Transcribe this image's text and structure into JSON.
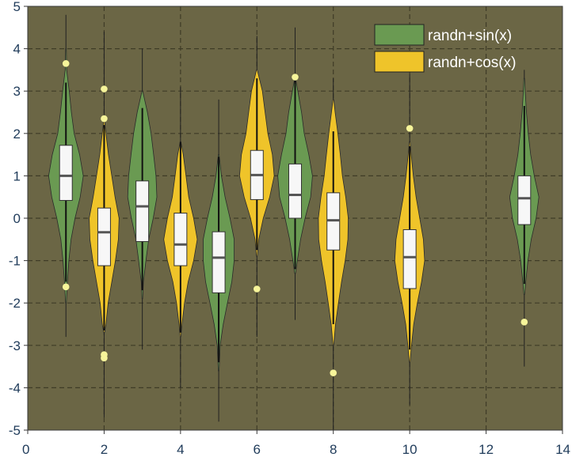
{
  "chart_data": {
    "type": "violin",
    "xlim": [
      0,
      14
    ],
    "ylim": [
      -5,
      5
    ],
    "x_ticks": [
      "0",
      "2",
      "4",
      "6",
      "8",
      "10",
      "12",
      "14"
    ],
    "y_ticks": [
      "5",
      "4",
      "3",
      "2",
      "1",
      "0",
      "-1",
      "-2",
      "-3",
      "-4",
      "-5"
    ],
    "grid": true,
    "legend_position": "top-right",
    "colors": {
      "background": "#6b6645",
      "grid": "#3f3c27",
      "sin": "#6a9a52",
      "cos": "#efc42a",
      "box": "#f7f7f7",
      "median": "#555555",
      "outlier": "#f7f59a",
      "tick_text": "#1f3b5a"
    },
    "series": [
      {
        "name": "randn+sin(x)",
        "color": "#6a9a52",
        "violins": [
          {
            "x": 1,
            "whisker": [
              -2.8,
              4.8
            ],
            "kde": [
              [
                -2.0,
                0.02
              ],
              [
                -1.5,
                0.08
              ],
              [
                -1.0,
                0.16
              ],
              [
                -0.5,
                0.28
              ],
              [
                0,
                0.5
              ],
              [
                0.5,
                0.78
              ],
              [
                1.0,
                0.95
              ],
              [
                1.5,
                0.75
              ],
              [
                2.0,
                0.45
              ],
              [
                2.5,
                0.3
              ],
              [
                3.0,
                0.18
              ],
              [
                3.5,
                0.04
              ],
              [
                4.0,
                0.02
              ]
            ],
            "q1": 0.42,
            "median": 1.0,
            "q3": 1.72,
            "inner": [
              -1.5,
              3.2
            ],
            "outliers": [
              3.65,
              -1.62
            ]
          },
          {
            "x": 3,
            "whisker": [
              -3.1,
              4.0
            ],
            "kde": [
              [
                -1.9,
                0.02
              ],
              [
                -1.5,
                0.06
              ],
              [
                -1.0,
                0.2
              ],
              [
                -0.5,
                0.35
              ],
              [
                0,
                0.6
              ],
              [
                0.5,
                0.8
              ],
              [
                1.0,
                0.75
              ],
              [
                1.5,
                0.62
              ],
              [
                2.0,
                0.48
              ],
              [
                2.5,
                0.28
              ],
              [
                3.0,
                0.02
              ]
            ],
            "q1": -0.55,
            "median": 0.28,
            "q3": 0.88,
            "inner": [
              -1.7,
              2.6
            ],
            "outliers": []
          },
          {
            "x": 5,
            "whisker": [
              -4.8,
              2.8
            ],
            "kde": [
              [
                -3.6,
                0.02
              ],
              [
                -3.0,
                0.08
              ],
              [
                -2.5,
                0.25
              ],
              [
                -2.0,
                0.48
              ],
              [
                -1.5,
                0.72
              ],
              [
                -1.0,
                0.85
              ],
              [
                -0.5,
                0.85
              ],
              [
                0,
                0.62
              ],
              [
                0.5,
                0.35
              ],
              [
                1.0,
                0.15
              ],
              [
                1.5,
                0.02
              ]
            ],
            "q1": -1.76,
            "median": -0.93,
            "q3": -0.32,
            "inner": [
              -3.4,
              1.45
            ],
            "outliers": []
          },
          {
            "x": 7,
            "whisker": [
              -2.4,
              4.5
            ],
            "kde": [
              [
                -1.3,
                0.02
              ],
              [
                -1.0,
                0.12
              ],
              [
                -0.5,
                0.3
              ],
              [
                0,
                0.55
              ],
              [
                0.5,
                0.85
              ],
              [
                1.0,
                0.95
              ],
              [
                1.5,
                0.75
              ],
              [
                2.0,
                0.5
              ],
              [
                2.5,
                0.35
              ],
              [
                3.0,
                0.15
              ],
              [
                3.3,
                0.02
              ]
            ],
            "q1": 0.0,
            "median": 0.55,
            "q3": 1.28,
            "inner": [
              -1.2,
              3.25
            ],
            "outliers": [
              3.33
            ]
          },
          {
            "x": 13,
            "whisker": [
              -3.5,
              3.5
            ],
            "kde": [
              [
                -1.8,
                0.02
              ],
              [
                -1.5,
                0.08
              ],
              [
                -1.0,
                0.2
              ],
              [
                -0.5,
                0.38
              ],
              [
                0,
                0.65
              ],
              [
                0.5,
                0.8
              ],
              [
                1.0,
                0.55
              ],
              [
                1.5,
                0.35
              ],
              [
                2.0,
                0.22
              ],
              [
                2.5,
                0.12
              ],
              [
                3.0,
                0.05
              ],
              [
                3.3,
                0.02
              ]
            ],
            "q1": -0.15,
            "median": 0.47,
            "q3": 1.0,
            "inner": [
              -1.55,
              2.65
            ],
            "outliers": [
              -2.45
            ]
          }
        ]
      },
      {
        "name": "randn+cos(x)",
        "color": "#efc42a",
        "violins": [
          {
            "x": 2,
            "whisker": [
              -4.7,
              4.4
            ],
            "kde": [
              [
                -2.7,
                0.02
              ],
              [
                -2.5,
                0.1
              ],
              [
                -2.0,
                0.22
              ],
              [
                -1.5,
                0.42
              ],
              [
                -1.0,
                0.62
              ],
              [
                -0.5,
                0.78
              ],
              [
                0,
                0.82
              ],
              [
                0.5,
                0.6
              ],
              [
                1.0,
                0.42
              ],
              [
                1.5,
                0.24
              ],
              [
                2.0,
                0.1
              ],
              [
                2.3,
                0.02
              ]
            ],
            "q1": -1.12,
            "median": -0.33,
            "q3": 0.24,
            "inner": [
              -2.65,
              2.2
            ],
            "outliers": [
              3.05,
              2.35,
              -3.22,
              -3.3
            ]
          },
          {
            "x": 4,
            "whisker": [
              -4.0,
              3.1
            ],
            "kde": [
              [
                -2.8,
                0.02
              ],
              [
                -2.5,
                0.08
              ],
              [
                -2.0,
                0.22
              ],
              [
                -1.5,
                0.42
              ],
              [
                -1.0,
                0.72
              ],
              [
                -0.5,
                0.92
              ],
              [
                0,
                0.72
              ],
              [
                0.5,
                0.45
              ],
              [
                1.0,
                0.3
              ],
              [
                1.5,
                0.15
              ],
              [
                1.8,
                0.02
              ]
            ],
            "q1": -1.12,
            "median": -0.62,
            "q3": 0.12,
            "inner": [
              -2.7,
              1.8
            ],
            "outliers": []
          },
          {
            "x": 6,
            "whisker": [
              -2.8,
              4.3
            ],
            "kde": [
              [
                -0.9,
                0.02
              ],
              [
                -0.5,
                0.1
              ],
              [
                0,
                0.35
              ],
              [
                0.5,
                0.7
              ],
              [
                1.0,
                0.95
              ],
              [
                1.5,
                0.85
              ],
              [
                2.0,
                0.6
              ],
              [
                2.5,
                0.45
              ],
              [
                3.0,
                0.3
              ],
              [
                3.5,
                0.02
              ]
            ],
            "q1": 0.44,
            "median": 1.02,
            "q3": 1.6,
            "inner": [
              -0.75,
              3.3
            ],
            "outliers": [
              -1.67
            ]
          },
          {
            "x": 8,
            "whisker": [
              -5.0,
              3.3
            ],
            "kde": [
              [
                -3.0,
                0.02
              ],
              [
                -2.5,
                0.12
              ],
              [
                -2.0,
                0.28
              ],
              [
                -1.5,
                0.45
              ],
              [
                -1.0,
                0.65
              ],
              [
                -0.5,
                0.8
              ],
              [
                0,
                0.82
              ],
              [
                0.5,
                0.68
              ],
              [
                1.0,
                0.5
              ],
              [
                1.5,
                0.38
              ],
              [
                2.0,
                0.25
              ],
              [
                2.5,
                0.1
              ],
              [
                2.8,
                0.02
              ]
            ],
            "q1": -0.75,
            "median": -0.05,
            "q3": 0.6,
            "inner": [
              -2.5,
              2.05
            ],
            "outliers": [
              -3.65
            ]
          },
          {
            "x": 10,
            "whisker": [
              -4.4,
              3.4
            ],
            "kde": [
              [
                -3.4,
                0.02
              ],
              [
                -3.0,
                0.1
              ],
              [
                -2.5,
                0.22
              ],
              [
                -2.0,
                0.42
              ],
              [
                -1.5,
                0.65
              ],
              [
                -1.0,
                0.82
              ],
              [
                -0.5,
                0.75
              ],
              [
                0,
                0.55
              ],
              [
                0.5,
                0.35
              ],
              [
                1.0,
                0.2
              ],
              [
                1.5,
                0.08
              ],
              [
                1.8,
                0.02
              ]
            ],
            "q1": -1.66,
            "median": -0.92,
            "q3": -0.27,
            "inner": [
              -3.1,
              1.7
            ],
            "outliers": [
              2.12
            ]
          }
        ]
      }
    ]
  }
}
